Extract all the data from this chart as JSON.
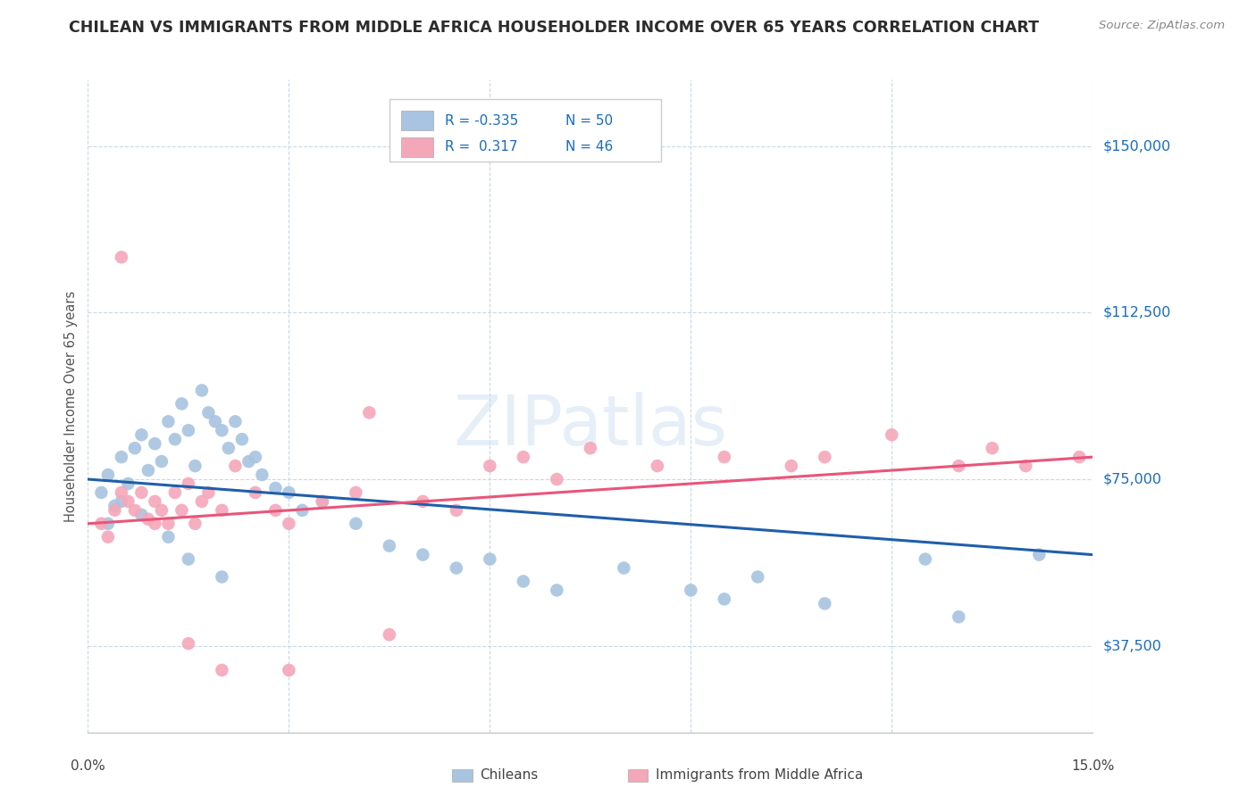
{
  "title": "CHILEAN VS IMMIGRANTS FROM MIDDLE AFRICA HOUSEHOLDER INCOME OVER 65 YEARS CORRELATION CHART",
  "source": "Source: ZipAtlas.com",
  "ylabel": "Householder Income Over 65 years",
  "xlim": [
    0.0,
    15.0
  ],
  "ylim": [
    18000,
    165000
  ],
  "yticks": [
    37500,
    75000,
    112500,
    150000
  ],
  "ytick_labels": [
    "$37,500",
    "$75,000",
    "$112,500",
    "$150,000"
  ],
  "legend_labels": [
    "Chileans",
    "Immigrants from Middle Africa"
  ],
  "R_chilean": -0.335,
  "N_chilean": 50,
  "R_immigrant": 0.317,
  "N_immigrant": 46,
  "chilean_color": "#a8c4e0",
  "immigrant_color": "#f4a7b9",
  "chilean_line_color": "#1f5faa",
  "immigrant_line_color": "#e8567a",
  "watermark": "ZIPatlas",
  "chilean_x": [
    0.2,
    0.3,
    0.4,
    0.5,
    0.6,
    0.7,
    0.8,
    0.9,
    1.0,
    1.1,
    1.2,
    1.3,
    1.4,
    1.5,
    1.6,
    1.7,
    1.8,
    1.9,
    2.0,
    2.1,
    2.2,
    2.3,
    2.4,
    2.5,
    2.6,
    2.8,
    3.0,
    3.2,
    3.5,
    4.0,
    4.5,
    5.0,
    5.5,
    6.0,
    6.5,
    7.0,
    8.0,
    9.0,
    9.5,
    10.0,
    11.0,
    12.5,
    13.0,
    14.2,
    0.3,
    0.5,
    0.8,
    1.2,
    1.5,
    2.0
  ],
  "chilean_y": [
    72000,
    76000,
    69000,
    80000,
    74000,
    82000,
    85000,
    77000,
    83000,
    79000,
    88000,
    84000,
    92000,
    86000,
    78000,
    95000,
    90000,
    88000,
    86000,
    82000,
    88000,
    84000,
    79000,
    80000,
    76000,
    73000,
    72000,
    68000,
    70000,
    65000,
    60000,
    58000,
    55000,
    57000,
    52000,
    50000,
    55000,
    50000,
    48000,
    53000,
    47000,
    57000,
    44000,
    58000,
    65000,
    70000,
    67000,
    62000,
    57000,
    53000
  ],
  "immigrant_x": [
    0.2,
    0.3,
    0.4,
    0.5,
    0.6,
    0.7,
    0.8,
    0.9,
    1.0,
    1.1,
    1.2,
    1.3,
    1.4,
    1.5,
    1.6,
    1.7,
    1.8,
    2.0,
    2.2,
    2.5,
    2.8,
    3.0,
    3.5,
    4.0,
    4.2,
    5.0,
    5.5,
    6.0,
    6.5,
    7.0,
    7.5,
    8.5,
    9.5,
    10.5,
    11.0,
    12.0,
    13.0,
    13.5,
    14.0,
    14.8,
    0.5,
    1.0,
    1.5,
    2.0,
    3.0,
    4.5
  ],
  "immigrant_y": [
    65000,
    62000,
    68000,
    72000,
    70000,
    68000,
    72000,
    66000,
    70000,
    68000,
    65000,
    72000,
    68000,
    74000,
    65000,
    70000,
    72000,
    68000,
    78000,
    72000,
    68000,
    65000,
    70000,
    72000,
    90000,
    70000,
    68000,
    78000,
    80000,
    75000,
    82000,
    78000,
    80000,
    78000,
    80000,
    85000,
    78000,
    82000,
    78000,
    80000,
    125000,
    65000,
    38000,
    32000,
    32000,
    40000
  ]
}
